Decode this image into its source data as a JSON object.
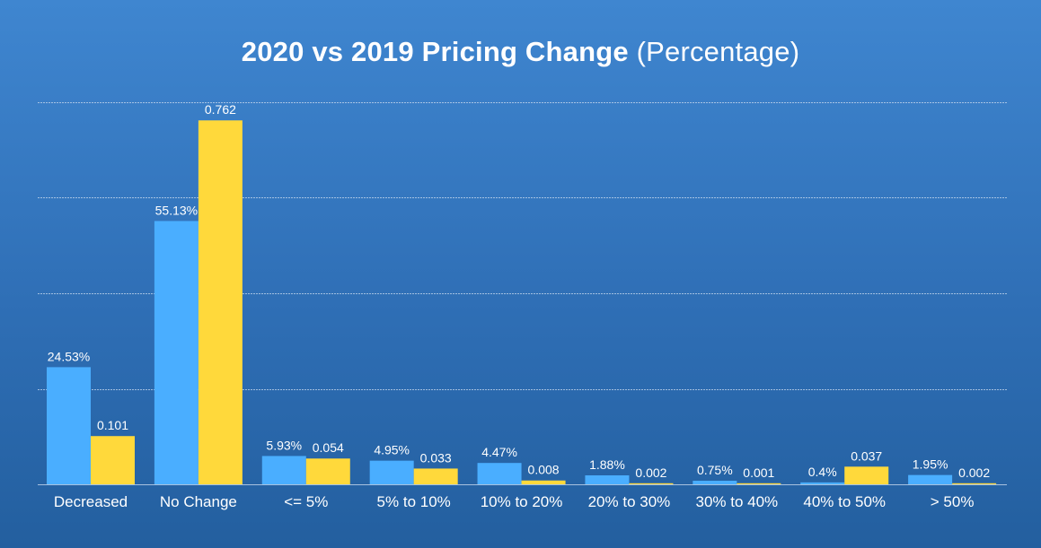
{
  "colors": {
    "background_top": "#3f86d0",
    "background_bottom": "#235f9f",
    "series_2020": "#4aaeff",
    "series_2019": "#ffd93b",
    "grid": "#c9d9ee",
    "text": "#ffffff"
  },
  "chart_data": {
    "type": "bar",
    "title": "2020 vs 2019 Pricing Change",
    "subtitle": "(Percentage)",
    "xlabel": "",
    "ylabel": "",
    "ylim": [
      0,
      0.8
    ],
    "grid": true,
    "legend": "none",
    "categories": [
      "Decreased",
      "No Change",
      "<= 5%",
      "5% to 10%",
      "10% to 20%",
      "20% to 30%",
      "30% to 40%",
      "40% to 50%",
      "> 50%"
    ],
    "series": [
      {
        "name": "2020",
        "values": [
          0.2453,
          0.5513,
          0.0593,
          0.0495,
          0.0447,
          0.0188,
          0.0075,
          0.004,
          0.0195
        ],
        "labels": [
          "24.53%",
          "55.13%",
          "5.93%",
          "4.95%",
          "4.47%",
          "1.88%",
          "0.75%",
          "0.4%",
          "1.95%"
        ]
      },
      {
        "name": "2019",
        "values": [
          0.101,
          0.762,
          0.054,
          0.033,
          0.008,
          0.002,
          0.001,
          0.037,
          0.002
        ],
        "labels": [
          "0.101",
          "0.762",
          "0.054",
          "0.033",
          "0.008",
          "0.002",
          "0.001",
          "0.037",
          "0.002"
        ]
      }
    ]
  }
}
